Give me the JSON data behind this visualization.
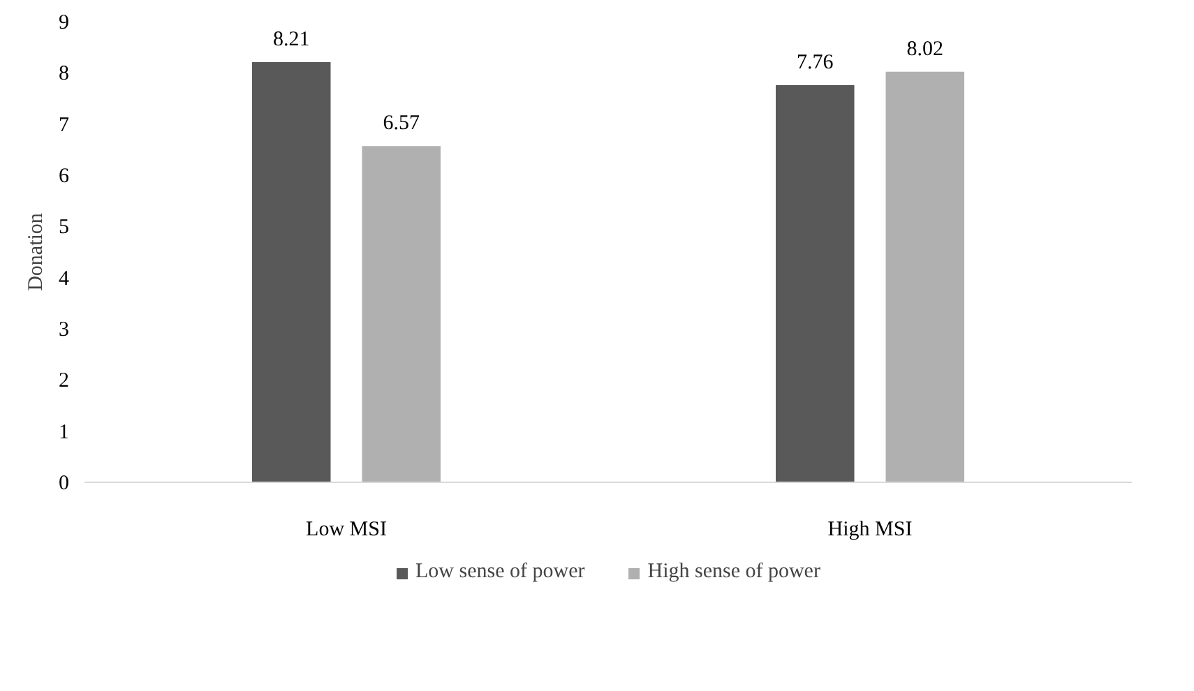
{
  "chart_data": {
    "type": "bar",
    "ylabel": "Donation",
    "categories": [
      "Low MSI",
      "High MSI"
    ],
    "series": [
      {
        "name": "Low sense of power",
        "color": "#595959",
        "values": [
          8.21,
          7.76
        ]
      },
      {
        "name": "High sense of power",
        "color": "#b0b0b0",
        "values": [
          6.57,
          8.02
        ]
      }
    ],
    "ylim": [
      0,
      9
    ],
    "yticks": [
      0,
      1,
      2,
      3,
      4,
      5,
      6,
      7,
      8,
      9
    ],
    "grid": false,
    "legend": "bottom",
    "data_labels": true
  }
}
